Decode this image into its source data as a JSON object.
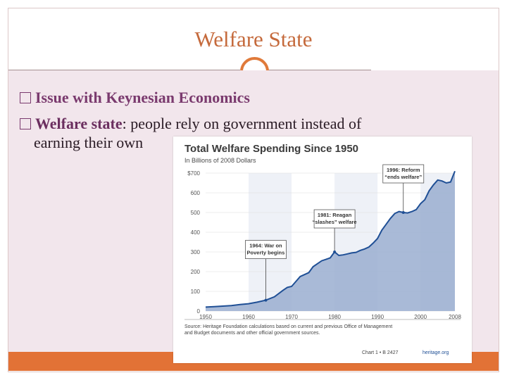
{
  "slide": {
    "title": "Welfare State",
    "bullets": [
      {
        "bold": "Issue with Keynesian Economics",
        "rest": ""
      },
      {
        "bold": "Welfare state",
        "rest": ": people rely on government instead of"
      }
    ],
    "continuation": "earning their own"
  },
  "colors": {
    "title": "#c56a3c",
    "accent": "#e27236",
    "content_bg": "#f2e6ec",
    "bullet": "#7a3a6e",
    "chart_fill": "#9aaed0",
    "chart_line": "#1f4f95"
  },
  "chart_data": {
    "type": "area",
    "title": "Total Welfare Spending Since 1950",
    "subtitle": "In Billions of 2008 Dollars",
    "ylim": [
      0,
      700
    ],
    "yticks": [
      0,
      100,
      200,
      300,
      400,
      500,
      600,
      700
    ],
    "ytick_labels": [
      "0",
      "100",
      "200",
      "300",
      "400",
      "500",
      "600",
      "$700"
    ],
    "xlim": [
      1950,
      2008
    ],
    "xticks": [
      1950,
      1960,
      1970,
      1980,
      1990,
      2000,
      2008
    ],
    "xtick_labels": [
      "1950",
      "1960",
      "1970",
      "1980",
      "1990",
      "2000",
      "2008"
    ],
    "series": [
      {
        "x": [
          1950,
          1952,
          1954,
          1956,
          1958,
          1960,
          1962,
          1964,
          1966,
          1968,
          1969,
          1970,
          1971,
          1972,
          1973,
          1974,
          1975,
          1976,
          1977,
          1978,
          1979,
          1980,
          1981,
          1982,
          1983,
          1984,
          1985,
          1986,
          1987,
          1988,
          1989,
          1990,
          1991,
          1992,
          1993,
          1994,
          1995,
          1996,
          1997,
          1998,
          1999,
          2000,
          2001,
          2002,
          2003,
          2004,
          2005,
          2006,
          2007,
          2008
        ],
        "y": [
          20,
          22,
          25,
          28,
          33,
          37,
          45,
          55,
          72,
          105,
          120,
          125,
          150,
          175,
          185,
          195,
          225,
          240,
          255,
          262,
          270,
          300,
          282,
          285,
          290,
          295,
          298,
          308,
          315,
          325,
          345,
          368,
          410,
          440,
          470,
          495,
          505,
          500,
          498,
          505,
          515,
          545,
          565,
          610,
          640,
          665,
          660,
          650,
          655,
          710
        ]
      }
    ],
    "annotations": [
      {
        "text": [
          "1964: War on",
          "Poverty begins"
        ],
        "x": 1964,
        "y": 55
      },
      {
        "text": [
          "1981: Reagan",
          "“slashes” welfare"
        ],
        "x": 1980,
        "y": 300
      },
      {
        "text": [
          "1996: Reform",
          "“ends welfare”"
        ],
        "x": 1996,
        "y": 500
      }
    ],
    "source": [
      "Source: Heritage Foundation calculations based on current and previous Office of Management",
      "and Budget documents and other official government sources."
    ],
    "footer": "Chart 1 • B 2427",
    "footer_brand": "heritage.org"
  }
}
